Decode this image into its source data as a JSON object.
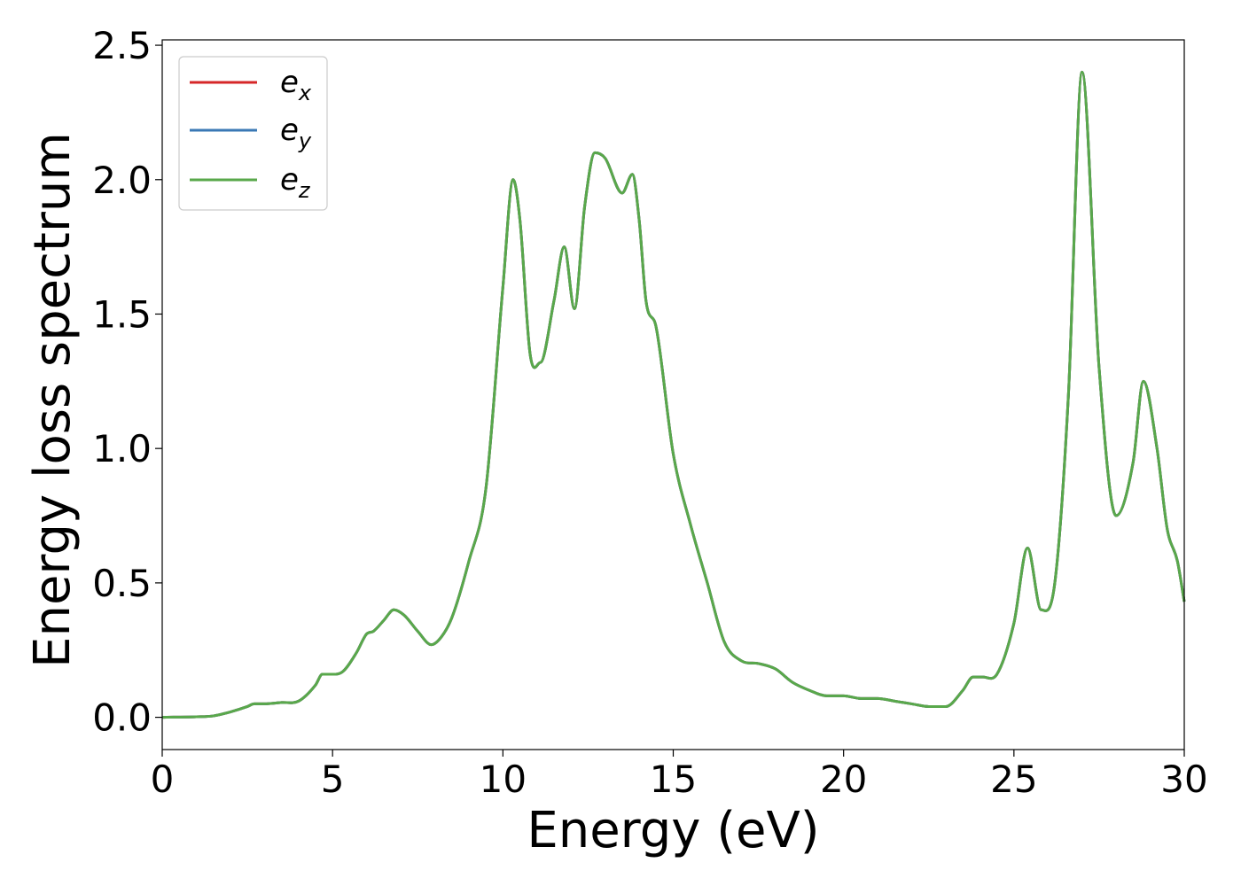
{
  "chart_data": {
    "type": "line",
    "xlabel": "Energy (eV)",
    "ylabel": "Energy loss spectrum",
    "xlim": [
      0,
      30
    ],
    "ylim": [
      -0.12,
      2.52
    ],
    "xticks": [
      "0",
      "5",
      "10",
      "15",
      "20",
      "25",
      "30"
    ],
    "yticks": [
      "0.0",
      "0.5",
      "1.0",
      "1.5",
      "2.0",
      "2.5"
    ],
    "grid": false,
    "legend": {
      "placement": "top-left",
      "entries": [
        {
          "base": "e",
          "sub": "x",
          "color": "#d62728"
        },
        {
          "base": "e",
          "sub": "y",
          "color": "#3a78b5"
        },
        {
          "base": "e",
          "sub": "z",
          "color": "#59a84b"
        }
      ]
    },
    "x": [
      0,
      1,
      1.5,
      2,
      2.5,
      2.7,
      3,
      3.5,
      4,
      4.5,
      4.7,
      5,
      5.3,
      5.7,
      6,
      6.2,
      6.5,
      6.8,
      7.1,
      7.5,
      7.9,
      8.2,
      8.5,
      9,
      9.5,
      10,
      10.3,
      10.5,
      10.8,
      11.1,
      11.5,
      11.8,
      12.1,
      12.4,
      12.7,
      13,
      13.5,
      13.8,
      14,
      14.2,
      14.5,
      15,
      15.5,
      16,
      16.5,
      17,
      17.5,
      18,
      18.5,
      19,
      19.5,
      20,
      20.5,
      21,
      21.5,
      22,
      22.5,
      23,
      23.5,
      23.8,
      24.1,
      24.5,
      25,
      25.4,
      25.8,
      26.2,
      26.6,
      27,
      27.5,
      28,
      28.5,
      28.8,
      29.2,
      29.5,
      29.8,
      30
    ],
    "series": [
      {
        "color": "#d62728",
        "values": [
          0,
          0.002,
          0.005,
          0.02,
          0.04,
          0.05,
          0.05,
          0.055,
          0.06,
          0.12,
          0.16,
          0.16,
          0.17,
          0.24,
          0.31,
          0.32,
          0.36,
          0.4,
          0.38,
          0.32,
          0.27,
          0.3,
          0.37,
          0.58,
          0.85,
          1.6,
          2.0,
          1.85,
          1.35,
          1.32,
          1.55,
          1.75,
          1.52,
          1.9,
          2.1,
          2.08,
          1.95,
          2.02,
          1.85,
          1.55,
          1.45,
          0.98,
          0.72,
          0.5,
          0.28,
          0.21,
          0.2,
          0.18,
          0.13,
          0.1,
          0.08,
          0.08,
          0.07,
          0.07,
          0.06,
          0.05,
          0.04,
          0.04,
          0.1,
          0.15,
          0.15,
          0.16,
          0.35,
          0.63,
          0.4,
          0.5,
          1.2,
          2.4,
          1.3,
          0.75,
          0.95,
          1.25,
          1.0,
          0.7,
          0.58,
          0.43
        ]
      },
      {
        "color": "#3a78b5",
        "values": [
          0,
          0.002,
          0.005,
          0.02,
          0.04,
          0.05,
          0.05,
          0.055,
          0.06,
          0.12,
          0.16,
          0.16,
          0.17,
          0.24,
          0.31,
          0.32,
          0.36,
          0.4,
          0.38,
          0.32,
          0.27,
          0.3,
          0.37,
          0.58,
          0.85,
          1.6,
          2.0,
          1.85,
          1.35,
          1.32,
          1.55,
          1.75,
          1.52,
          1.9,
          2.1,
          2.08,
          1.95,
          2.02,
          1.85,
          1.55,
          1.45,
          0.98,
          0.72,
          0.5,
          0.28,
          0.21,
          0.2,
          0.18,
          0.13,
          0.1,
          0.08,
          0.08,
          0.07,
          0.07,
          0.06,
          0.05,
          0.04,
          0.04,
          0.1,
          0.15,
          0.15,
          0.16,
          0.35,
          0.63,
          0.4,
          0.5,
          1.2,
          2.4,
          1.3,
          0.75,
          0.95,
          1.25,
          1.0,
          0.7,
          0.58,
          0.43
        ]
      },
      {
        "color": "#59a84b",
        "values": [
          0,
          0.002,
          0.005,
          0.02,
          0.04,
          0.05,
          0.05,
          0.055,
          0.06,
          0.12,
          0.16,
          0.16,
          0.17,
          0.24,
          0.31,
          0.32,
          0.36,
          0.4,
          0.38,
          0.32,
          0.27,
          0.3,
          0.37,
          0.58,
          0.85,
          1.6,
          2.0,
          1.85,
          1.35,
          1.32,
          1.55,
          1.75,
          1.52,
          1.9,
          2.1,
          2.08,
          1.95,
          2.02,
          1.85,
          1.55,
          1.45,
          0.98,
          0.72,
          0.5,
          0.28,
          0.21,
          0.2,
          0.18,
          0.13,
          0.1,
          0.08,
          0.08,
          0.07,
          0.07,
          0.06,
          0.05,
          0.04,
          0.04,
          0.1,
          0.15,
          0.15,
          0.16,
          0.35,
          0.63,
          0.4,
          0.5,
          1.2,
          2.4,
          1.3,
          0.75,
          0.95,
          1.25,
          1.0,
          0.7,
          0.58,
          0.43
        ]
      }
    ]
  }
}
